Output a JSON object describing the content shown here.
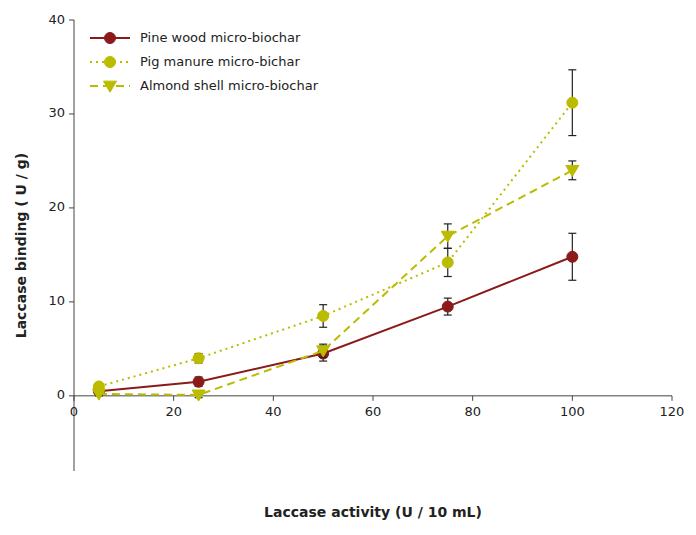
{
  "chart_data": {
    "type": "line",
    "xlabel": "Laccase activity  (U / 10 mL)",
    "ylabel": "Laccase binding  ( U / g)",
    "x": [
      5,
      25,
      50,
      75,
      100
    ],
    "series": [
      {
        "name": "Pine wood micro-biochar",
        "color": "#8B1A1A",
        "marker": "circle",
        "line_style": "solid",
        "values": [
          0.5,
          1.5,
          4.5,
          9.5,
          14.8
        ],
        "errors": [
          0.3,
          0.5,
          0.8,
          0.9,
          2.5
        ]
      },
      {
        "name": "Pig manure micro-bichar",
        "color": "#BBBB00",
        "marker": "circle",
        "line_style": "dotted",
        "values": [
          1.0,
          4.0,
          8.5,
          14.2,
          31.2
        ],
        "errors": [
          0.3,
          0.5,
          1.2,
          1.5,
          3.5
        ]
      },
      {
        "name": "Almond shell micro-biochar",
        "color": "#BBBB00",
        "marker": "triangle-down",
        "line_style": "dashed",
        "values": [
          0.2,
          0.1,
          4.8,
          17.0,
          24.0
        ],
        "errors": [
          0.2,
          0.3,
          0.7,
          1.3,
          1.0
        ]
      }
    ],
    "xlim": [
      0,
      120
    ],
    "ylim": [
      -8,
      40
    ],
    "xticks": [
      0,
      20,
      40,
      60,
      80,
      100,
      120
    ],
    "yticks": [
      0,
      10,
      20,
      30,
      40
    ],
    "grid": false,
    "legend": "upper left"
  }
}
